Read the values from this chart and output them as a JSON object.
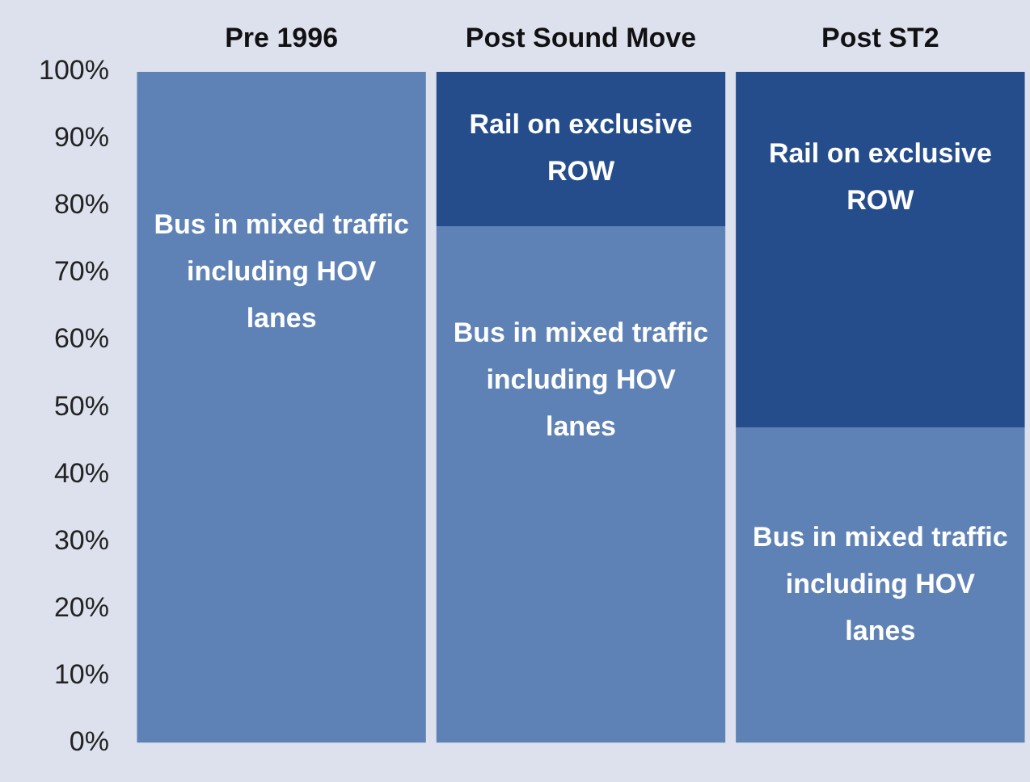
{
  "chart_data": {
    "type": "bar",
    "stacked": true,
    "categories": [
      "Pre 1996",
      "Post Sound Move",
      "Post ST2"
    ],
    "series": [
      {
        "name": "Bus in mixed traffic including HOV lanes",
        "color": "#5e82b5",
        "values": [
          100,
          77,
          47
        ]
      },
      {
        "name": "Rail on exclusive ROW",
        "color": "#254d8c",
        "values": [
          0,
          23,
          53
        ]
      }
    ],
    "ylim": [
      0,
      100
    ],
    "yticks": [
      {
        "value": 0,
        "label": "0%"
      },
      {
        "value": 10,
        "label": "10%"
      },
      {
        "value": 20,
        "label": "20%"
      },
      {
        "value": 30,
        "label": "30%"
      },
      {
        "value": 40,
        "label": "40%"
      },
      {
        "value": 50,
        "label": "50%"
      },
      {
        "value": 60,
        "label": "60%"
      },
      {
        "value": 70,
        "label": "70%"
      },
      {
        "value": 80,
        "label": "80%"
      },
      {
        "value": 90,
        "label": "90%"
      },
      {
        "value": 100,
        "label": "100%"
      }
    ],
    "grid": false,
    "legend": false
  }
}
